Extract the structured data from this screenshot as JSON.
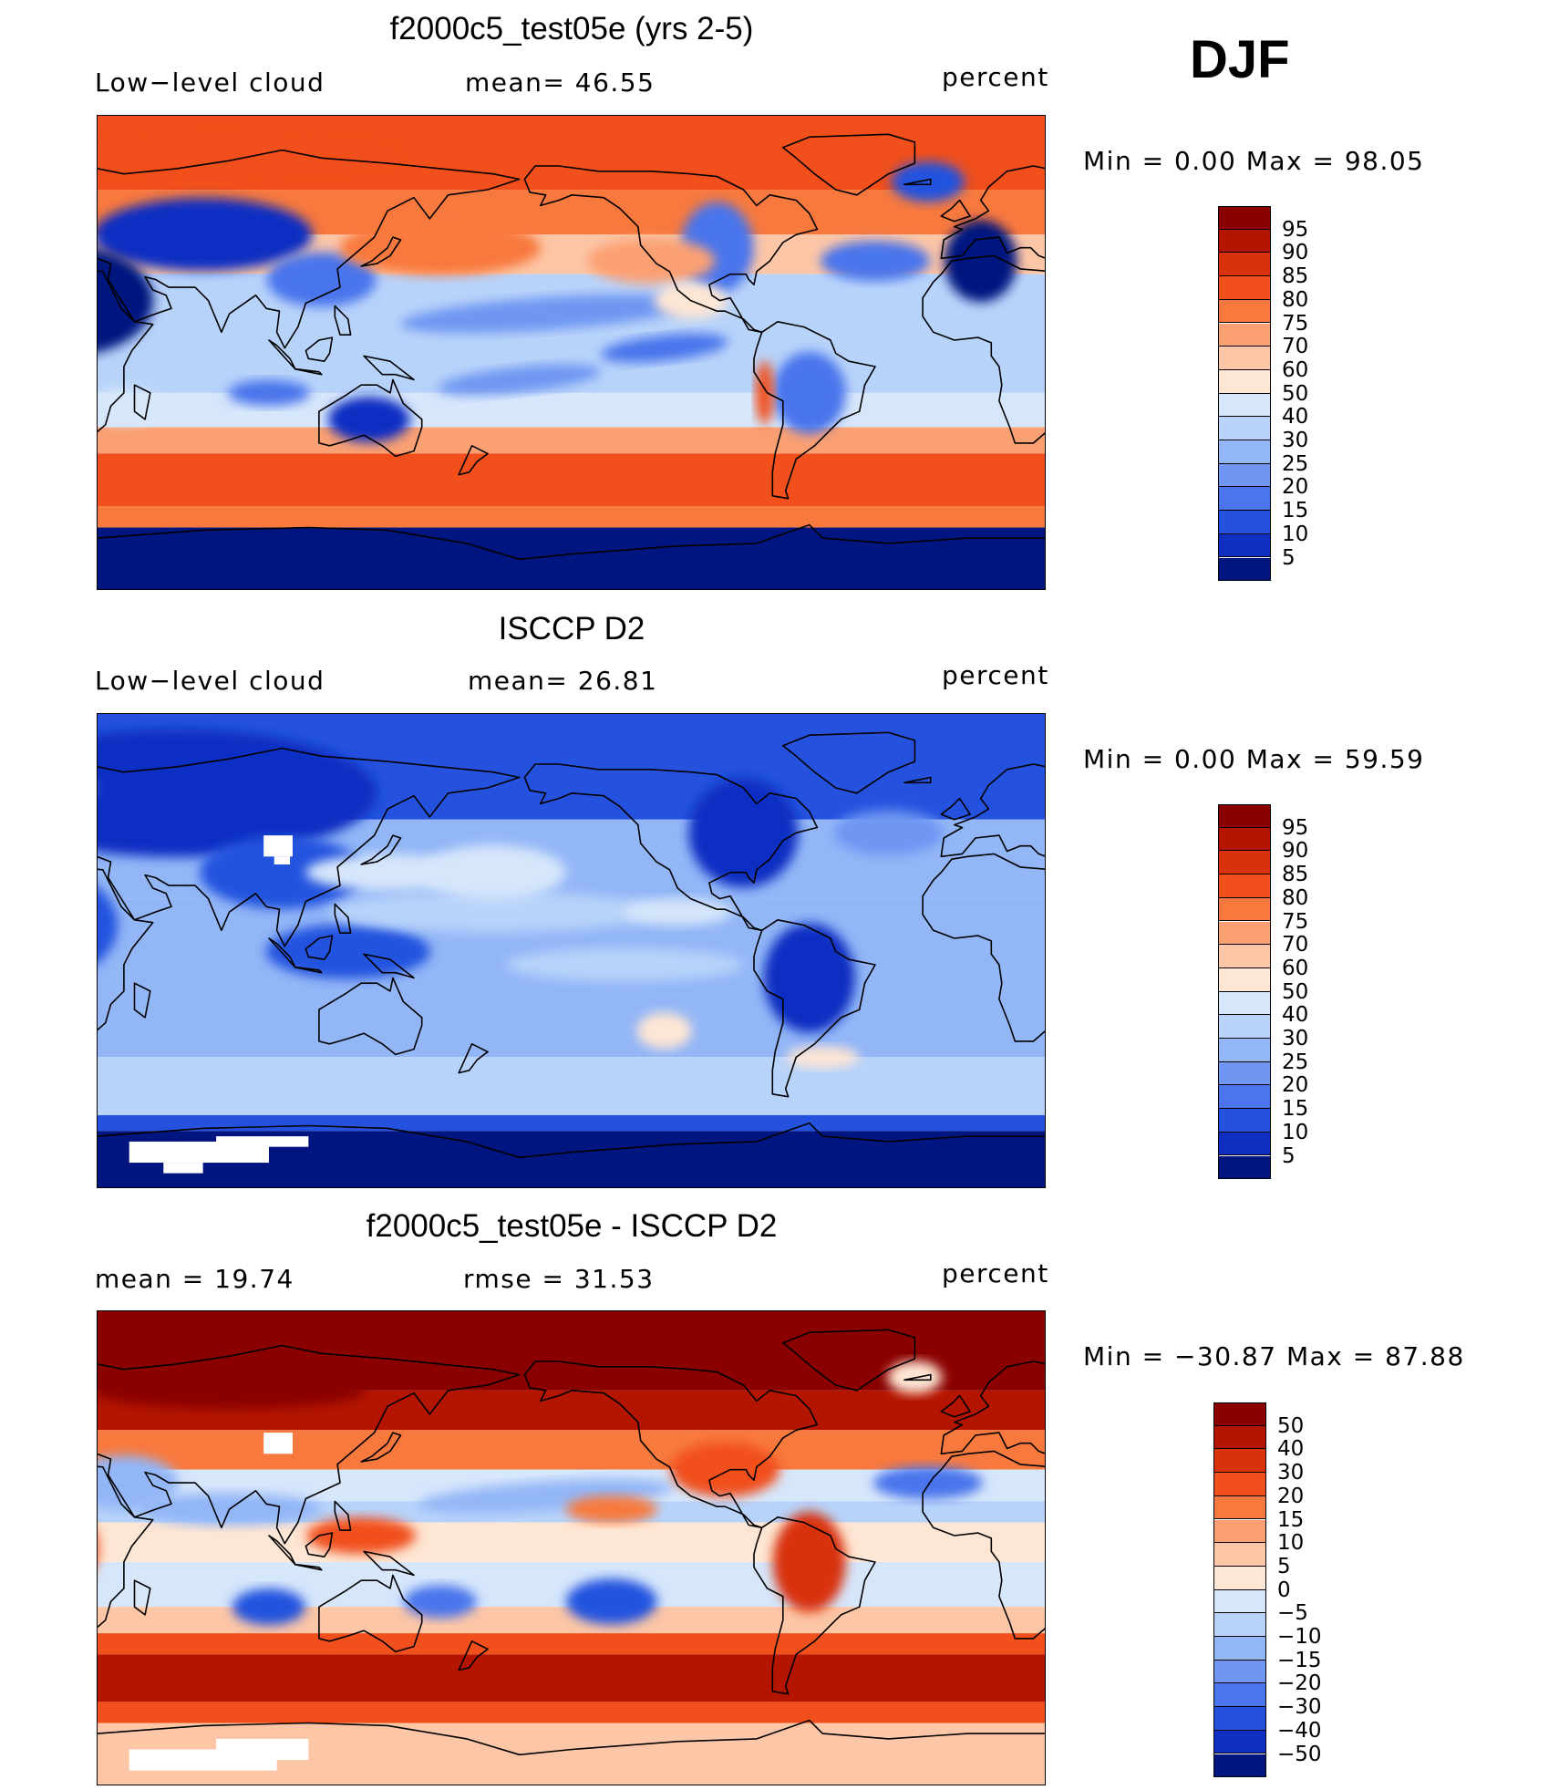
{
  "season": "DJF",
  "panels": [
    {
      "title": "f2000c5_test05e (yrs 2-5)",
      "left_label": "Low−level cloud",
      "center_label": "mean=   46.55",
      "units": "percent",
      "minmax": "Min  =     0.00  Max  =    98.05",
      "legend_levels": [
        "95",
        "90",
        "85",
        "80",
        "75",
        "70",
        "60",
        "50",
        "40",
        "30",
        "25",
        "20",
        "15",
        "10",
        "5"
      ],
      "legend_colors": [
        "#8a0000",
        "#b31500",
        "#d8320a",
        "#f14f1c",
        "#f8793e",
        "#fba073",
        "#fdc6a6",
        "#fee6d4",
        "#d6e6fb",
        "#b8d3fa",
        "#93b6f7",
        "#6e96f2",
        "#4a75ec",
        "#2452df",
        "#0f2fc2",
        "#00157f"
      ],
      "pattern": "model"
    },
    {
      "title": "ISCCP D2",
      "left_label": "Low−level cloud",
      "center_label": "mean=   26.81",
      "units": "percent",
      "minmax": "Min  =     0.00  Max  =    59.59",
      "legend_levels": [
        "95",
        "90",
        "85",
        "80",
        "75",
        "70",
        "60",
        "50",
        "40",
        "30",
        "25",
        "20",
        "15",
        "10",
        "5"
      ],
      "legend_colors": [
        "#8a0000",
        "#b31500",
        "#d8320a",
        "#f14f1c",
        "#f8793e",
        "#fba073",
        "#fdc6a6",
        "#fee6d4",
        "#d6e6fb",
        "#b8d3fa",
        "#93b6f7",
        "#6e96f2",
        "#4a75ec",
        "#2452df",
        "#0f2fc2",
        "#00157f"
      ],
      "pattern": "obs"
    },
    {
      "title": "f2000c5_test05e - ISCCP D2",
      "left_label": "mean  =    19.74",
      "center_label": "rmse  =    31.53",
      "units": "percent",
      "minmax": "Min  = −30.87  Max  =    87.88",
      "legend_levels": [
        "50",
        "40",
        "30",
        "20",
        "15",
        "10",
        "5",
        "0",
        "−5",
        "−10",
        "−15",
        "−20",
        "−30",
        "−40",
        "−50"
      ],
      "legend_colors": [
        "#8a0000",
        "#b31500",
        "#d8320a",
        "#f14f1c",
        "#f8793e",
        "#fba073",
        "#fdc6a6",
        "#fee6d4",
        "#d6e6fb",
        "#b8d3fa",
        "#93b6f7",
        "#6e96f2",
        "#4a75ec",
        "#2452df",
        "#0f2fc2",
        "#00157f"
      ],
      "pattern": "diff"
    }
  ]
}
